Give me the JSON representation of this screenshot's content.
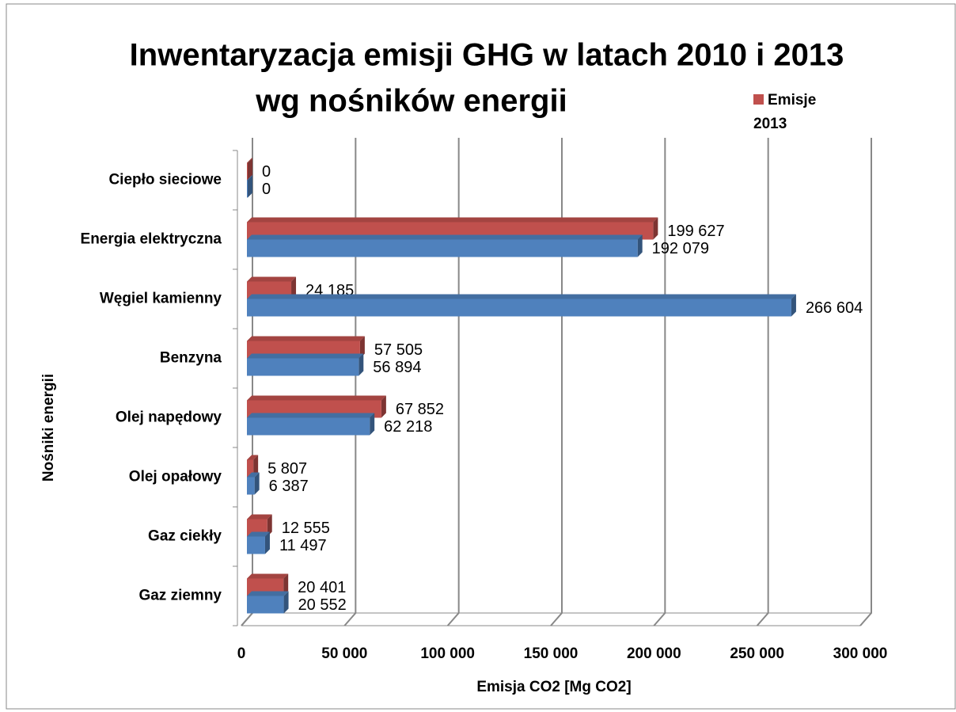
{
  "chart_data": {
    "type": "bar",
    "orientation": "horizontal",
    "title": [
      "Inwentaryzacja emisji GHG w latach 2010 i 2013",
      "wg nośników energii"
    ],
    "x_label": "Emisja CO2 [Mg CO2]",
    "y_label": "Nośniki energii",
    "categories": [
      "Ciepło sieciowe",
      "Energia elektryczna",
      "Węgiel kamienny",
      "Benzyna",
      "Olej napędowy",
      "Olej opałowy",
      "Gaz ciekły",
      "Gaz ziemny"
    ],
    "series": [
      {
        "name": "Emisje 2013",
        "color": "#c0504d",
        "values": [
          0,
          199627,
          24185,
          57505,
          67852,
          5807,
          12555,
          20401
        ],
        "value_labels": [
          "0",
          "199 627",
          "24 185",
          "57 505",
          "67 852",
          "5 807",
          "12 555",
          "20 401"
        ]
      },
      {
        "color": "#4f81bd",
        "values": [
          0,
          192079,
          266604,
          56894,
          62218,
          6387,
          11497,
          20552
        ],
        "value_labels": [
          "0",
          "192 079",
          "266 604",
          "56 894",
          "62 218",
          "6 387",
          "11 497",
          "20 552"
        ]
      }
    ],
    "xlim": [
      0,
      300000
    ],
    "xticks": [
      0,
      {
        "value": 50000,
        "label": "50 000"
      },
      {
        "value": 100000,
        "label": "100 000"
      },
      {
        "value": 150000,
        "label": "150 000"
      },
      {
        "value": 200000,
        "label": "200 000"
      },
      {
        "value": 250000,
        "label": "250 000"
      },
      {
        "value": 300000,
        "label": "300 000"
      }
    ],
    "grid": true,
    "legend": "top-right"
  }
}
